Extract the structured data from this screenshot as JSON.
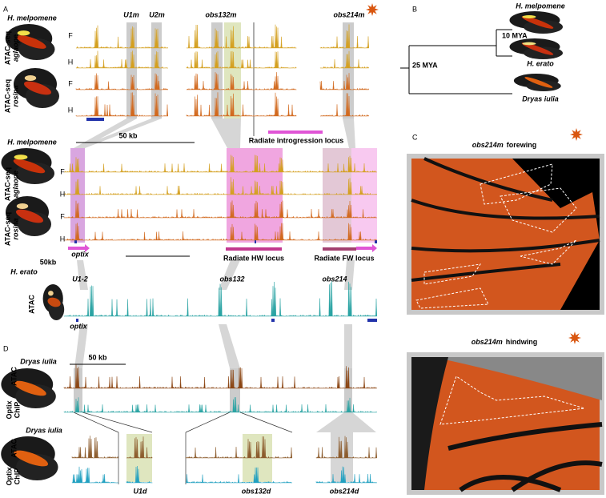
{
  "a": {
    "label": "A",
    "melpomene_zoom": {
      "species": "H. melpomene",
      "tracks": [
        {
          "assay": "ATAC-seq",
          "race": "aglaope",
          "rows": [
            "F",
            "H"
          ]
        },
        {
          "assay": "ATAC-seq",
          "race": "rosina",
          "rows": [
            "F",
            "H"
          ]
        }
      ],
      "elements": [
        "U1m",
        "U2m",
        "obs132m",
        "obs214m"
      ]
    },
    "melpomene_locus": {
      "species": "H. melpomene",
      "tracks": [
        {
          "assay": "ATAC-seq",
          "race": "aglaope",
          "rows": [
            "F",
            "H"
          ]
        },
        {
          "assay": "ATAC-seq",
          "race": "rosina",
          "rows": [
            "F",
            "H"
          ]
        }
      ],
      "scale": "50 kb",
      "introgression": "Radiate introgression locus",
      "gene": "optix",
      "scale_erato": "50kb",
      "hw_locus": "Radiate HW locus",
      "fw_locus": "Radiate FW locus"
    },
    "erato": {
      "species": "H. erato",
      "assay": "ATAC",
      "elements": [
        "U1-2",
        "obs132",
        "obs214"
      ],
      "gene": "optix"
    }
  },
  "b": {
    "label": "B",
    "taxa": [
      "H. melpomene",
      "H. erato",
      "Dryas iulia"
    ],
    "nodes": [
      "10 MYA",
      "25 MYA"
    ]
  },
  "c": {
    "label": "C",
    "forewing": {
      "element": "obs214m",
      "wing": "forewing"
    },
    "hindwing": {
      "element": "obs214m",
      "wing": "hindwing"
    }
  },
  "d": {
    "label": "D",
    "overview": {
      "species": "Dryas iulia",
      "atac": "ATAC",
      "chip": [
        "Optix",
        "ChIP"
      ],
      "scale": "50 kb"
    },
    "zoom": {
      "species": "Dryas iulia",
      "atac": "ATAC",
      "chip": [
        "Optix",
        "ChIP"
      ],
      "elements": [
        "U1d",
        "obs132d",
        "obs214d"
      ]
    }
  }
}
